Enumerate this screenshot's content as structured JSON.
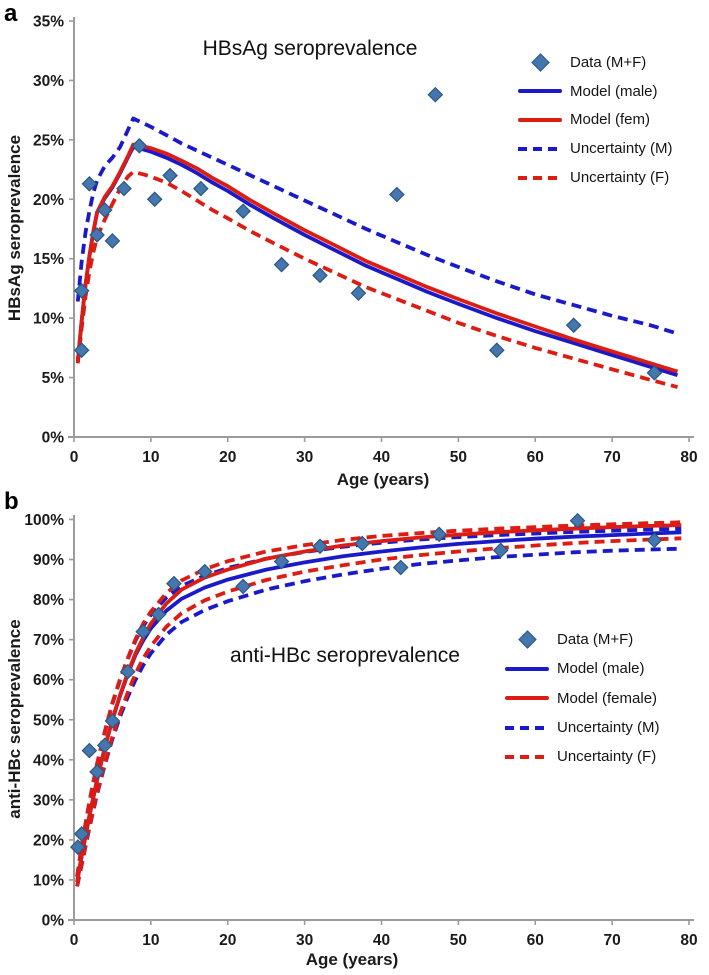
{
  "colors": {
    "male": "#1a1ac9",
    "female": "#dc1d14",
    "data_marker": "#4377ae",
    "data_marker_border": "#2d5783",
    "axis": "#9b9b9b",
    "text": "#1a1a1a"
  },
  "chart_data": [
    {
      "panel_letter": "a",
      "type": "scatter+line",
      "title": "HBsAg seroprevalence",
      "xlabel": "Age (years)",
      "ylabel": "HBsAg seroprevalence",
      "xlim": [
        0,
        80
      ],
      "ylim": [
        0,
        35
      ],
      "grid": false,
      "legend_position": "upper right",
      "x_tick_labels": [
        "0",
        "10",
        "20",
        "30",
        "40",
        "50",
        "60",
        "70",
        "80"
      ],
      "y_tick_labels": [
        "0%",
        "5%",
        "10%",
        "15%",
        "20%",
        "25%",
        "30%",
        "35%"
      ],
      "legend": [
        {
          "marker": "diamond",
          "label": "Data (M+F)"
        },
        {
          "marker": "solid",
          "color_key": "male",
          "label": "Model (male)"
        },
        {
          "marker": "solid",
          "color_key": "female",
          "label": "Model (fem)"
        },
        {
          "marker": "dashed",
          "color_key": "male",
          "label": "Uncertainty (M)"
        },
        {
          "marker": "dashed",
          "color_key": "female",
          "label": "Uncertainty (F)"
        }
      ],
      "data_points": [
        [
          1,
          12.3
        ],
        [
          1,
          7.3
        ],
        [
          2,
          21.3
        ],
        [
          3,
          17.0
        ],
        [
          4,
          19.1
        ],
        [
          5,
          16.5
        ],
        [
          6.5,
          20.9
        ],
        [
          8.5,
          24.5
        ],
        [
          10.5,
          20.0
        ],
        [
          12.5,
          22.0
        ],
        [
          16.5,
          20.9
        ],
        [
          22,
          19.0
        ],
        [
          27,
          14.5
        ],
        [
          32,
          13.6
        ],
        [
          37,
          12.1
        ],
        [
          42,
          20.4
        ],
        [
          47,
          28.8
        ],
        [
          55,
          7.3
        ],
        [
          65,
          9.4
        ],
        [
          75.5,
          5.4
        ]
      ],
      "series": [
        {
          "name": "Uncertainty (M)",
          "style": "dashed",
          "color_key": "male",
          "ages": [
            0.5,
            1,
            1.5,
            2,
            2.5,
            3,
            4,
            5,
            6,
            7,
            7.7,
            9,
            10,
            12,
            14,
            16,
            18,
            20,
            23,
            26,
            30,
            34,
            38,
            42,
            46,
            50,
            55,
            60,
            65,
            70,
            75,
            78.5
          ],
          "values": [
            11.4,
            14.8,
            17.2,
            19.0,
            20.5,
            21.6,
            22.8,
            23.5,
            24.4,
            25.8,
            26.8,
            26.4,
            26.1,
            25.4,
            24.7,
            24.1,
            23.5,
            22.9,
            22.0,
            21.1,
            19.9,
            18.7,
            17.5,
            16.4,
            15.3,
            14.3,
            13.1,
            12.0,
            11.1,
            10.2,
            9.4,
            8.7
          ]
        },
        {
          "name": "Uncertainty (F)",
          "style": "dashed",
          "color_key": "female",
          "ages": [
            0.5,
            1,
            1.5,
            2,
            2.5,
            3,
            4,
            5,
            6,
            7,
            7.7,
            9,
            10,
            12,
            14,
            16,
            18,
            20,
            23,
            26,
            30,
            34,
            38,
            42,
            46,
            50,
            55,
            60,
            65,
            70,
            75,
            78.5
          ],
          "values": [
            6.2,
            9.2,
            11.8,
            13.9,
            15.5,
            16.8,
            18.3,
            19.6,
            20.9,
            21.9,
            22.3,
            22.1,
            21.9,
            21.4,
            20.7,
            19.9,
            19.1,
            18.4,
            17.3,
            16.3,
            15.0,
            13.8,
            12.6,
            11.6,
            10.6,
            9.6,
            8.5,
            7.5,
            6.6,
            5.7,
            4.8,
            4.2
          ]
        },
        {
          "name": "Model (male)",
          "style": "solid",
          "color_key": "male",
          "ages": [
            0.5,
            1,
            1.5,
            2,
            2.5,
            3,
            4,
            5,
            6,
            7,
            7.7,
            9,
            10,
            12,
            14,
            16,
            18,
            20,
            23,
            26,
            30,
            34,
            38,
            42,
            46,
            50,
            55,
            60,
            65,
            70,
            75,
            78.5
          ],
          "values": [
            6.4,
            9.8,
            12.8,
            15.2,
            17.2,
            18.9,
            20.1,
            21.0,
            22.2,
            23.5,
            24.4,
            24.2,
            24.0,
            23.5,
            22.9,
            22.2,
            21.4,
            20.7,
            19.5,
            18.4,
            17.0,
            15.7,
            14.4,
            13.3,
            12.2,
            11.2,
            10.0,
            8.9,
            7.9,
            6.9,
            5.9,
            5.2
          ]
        },
        {
          "name": "Model (fem)",
          "style": "solid",
          "color_key": "female",
          "ages": [
            0.5,
            1,
            1.5,
            2,
            2.5,
            3,
            4,
            5,
            6,
            7,
            7.7,
            9,
            10,
            12,
            14,
            16,
            18,
            20,
            23,
            26,
            30,
            34,
            38,
            42,
            46,
            50,
            55,
            60,
            65,
            70,
            75,
            78.5
          ],
          "values": [
            6.4,
            9.8,
            12.8,
            15.2,
            17.2,
            18.9,
            20.2,
            21.1,
            22.3,
            23.6,
            24.6,
            24.45,
            24.3,
            23.85,
            23.25,
            22.6,
            21.8,
            21.1,
            19.9,
            18.8,
            17.4,
            16.1,
            14.8,
            13.7,
            12.6,
            11.6,
            10.4,
            9.3,
            8.2,
            7.2,
            6.2,
            5.5
          ]
        }
      ]
    },
    {
      "panel_letter": "b",
      "type": "scatter+line",
      "title": "anti-HBc seroprevalence",
      "xlabel": "Age (years)",
      "ylabel": "anti-HBc seroprevalence",
      "xlim": [
        0,
        80
      ],
      "ylim": [
        0,
        100
      ],
      "grid": false,
      "legend_position": "middle right",
      "x_tick_labels": [
        "0",
        "10",
        "20",
        "30",
        "40",
        "50",
        "60",
        "70",
        "80"
      ],
      "y_tick_labels": [
        "0%",
        "10%",
        "20%",
        "30%",
        "40%",
        "50%",
        "60%",
        "70%",
        "80%",
        "90%",
        "100%"
      ],
      "legend": [
        {
          "marker": "diamond",
          "label": "Data (M+F)"
        },
        {
          "marker": "solid",
          "color_key": "male",
          "label": "Model (male)"
        },
        {
          "marker": "solid",
          "color_key": "female",
          "label": "Model (female)"
        },
        {
          "marker": "dashed",
          "color_key": "male",
          "label": "Uncertainty (M)"
        },
        {
          "marker": "dashed",
          "color_key": "female",
          "label": "Uncertainty (F)"
        }
      ],
      "data_points": [
        [
          0.5,
          18.2
        ],
        [
          1,
          21.5
        ],
        [
          2,
          42.3
        ],
        [
          3,
          37.0
        ],
        [
          4,
          43.6
        ],
        [
          5,
          49.7
        ],
        [
          7,
          62.0
        ],
        [
          9,
          72.0
        ],
        [
          11,
          76.3
        ],
        [
          13,
          84.0
        ],
        [
          17,
          87.0
        ],
        [
          22,
          83.3
        ],
        [
          27,
          89.5
        ],
        [
          32,
          93.3
        ],
        [
          37.5,
          94.0
        ],
        [
          42.5,
          88.0
        ],
        [
          47.5,
          96.3
        ],
        [
          55.5,
          92.3
        ],
        [
          65.5,
          99.7
        ],
        [
          75.5,
          94.8
        ]
      ],
      "series": [
        {
          "name": "Uncertainty (M) upper",
          "style": "dashed",
          "color_key": "male",
          "ages": [
            0.4,
            1,
            2,
            3,
            4,
            5,
            6,
            7,
            8,
            9,
            10,
            12,
            14,
            17,
            20,
            25,
            30,
            35,
            40,
            45,
            50,
            55,
            60,
            65,
            70,
            75,
            79
          ],
          "values": [
            10.8,
            18.5,
            29.5,
            39,
            47,
            54,
            60,
            65.2,
            69.8,
            73.4,
            76.2,
            80.5,
            83.4,
            86.0,
            87.9,
            90.2,
            91.9,
            93.2,
            94.2,
            95.0,
            95.6,
            96.1,
            96.5,
            96.9,
            97.2,
            97.5,
            97.7
          ]
        },
        {
          "name": "Uncertainty (F) upper",
          "style": "dashed",
          "color_key": "female",
          "ages": [
            0.4,
            1,
            2,
            3,
            4,
            5,
            6,
            7,
            8,
            9,
            10,
            12,
            14,
            17,
            20,
            25,
            30,
            35,
            40,
            45,
            50,
            55,
            60,
            65,
            70,
            75,
            79
          ],
          "values": [
            10.8,
            18.5,
            29.5,
            39,
            47,
            54.2,
            60.2,
            65.4,
            70.1,
            74.0,
            77.0,
            81.6,
            84.8,
            87.6,
            89.6,
            92.0,
            93.6,
            94.9,
            95.9,
            96.6,
            97.2,
            97.7,
            98.1,
            98.5,
            98.8,
            99.1,
            99.3
          ]
        },
        {
          "name": "Uncertainty (M) lower",
          "style": "dashed",
          "color_key": "male",
          "ages": [
            0.4,
            1,
            2,
            3,
            4,
            5,
            6,
            7,
            8,
            9,
            10,
            12,
            14,
            17,
            20,
            25,
            30,
            35,
            40,
            45,
            50,
            55,
            60,
            65,
            70,
            75,
            79
          ],
          "values": [
            8.4,
            13.8,
            23,
            31.4,
            38.7,
            45.2,
            50.8,
            55.7,
            60.0,
            63.6,
            66.6,
            71.2,
            74.4,
            77.4,
            79.6,
            82.5,
            84.6,
            86.3,
            87.7,
            88.9,
            89.8,
            90.6,
            91.2,
            91.8,
            92.2,
            92.5,
            92.7
          ]
        },
        {
          "name": "Uncertainty (F) lower",
          "style": "dashed",
          "color_key": "female",
          "ages": [
            0.4,
            1,
            2,
            3,
            4,
            5,
            6,
            7,
            8,
            9,
            10,
            12,
            14,
            17,
            20,
            25,
            30,
            35,
            40,
            45,
            50,
            55,
            60,
            65,
            70,
            75,
            79
          ],
          "values": [
            8.4,
            13.9,
            23.2,
            31.7,
            39.1,
            45.8,
            51.6,
            56.8,
            61.5,
            65.3,
            68.4,
            73.2,
            76.6,
            79.8,
            82.0,
            84.9,
            87.0,
            88.6,
            90.0,
            91.1,
            92.0,
            92.8,
            93.5,
            94.1,
            94.6,
            95.0,
            95.3
          ]
        },
        {
          "name": "Model (male)",
          "style": "solid",
          "color_key": "male",
          "ages": [
            0.4,
            1,
            2,
            3,
            4,
            5,
            6,
            7,
            8,
            9,
            10,
            12,
            14,
            17,
            20,
            25,
            30,
            35,
            40,
            45,
            50,
            55,
            60,
            65,
            70,
            75,
            79
          ],
          "values": [
            9.5,
            16,
            26,
            35,
            43,
            50,
            56,
            61.4,
            66.2,
            69.8,
            72.8,
            77.2,
            80.2,
            83.0,
            85.0,
            87.5,
            89.3,
            90.8,
            92.0,
            93.0,
            93.9,
            94.6,
            95.2,
            95.7,
            96.1,
            96.5,
            96.8
          ]
        },
        {
          "name": "Model (female)",
          "style": "solid",
          "color_key": "female",
          "ages": [
            0.4,
            1,
            2,
            3,
            4,
            5,
            6,
            7,
            8,
            9,
            10,
            12,
            14,
            17,
            20,
            25,
            30,
            35,
            40,
            45,
            50,
            55,
            60,
            65,
            70,
            75,
            79
          ],
          "values": [
            9.5,
            16,
            26,
            35,
            43,
            50.2,
            56.2,
            61.7,
            66.6,
            70.5,
            74.0,
            79.0,
            82.5,
            85.5,
            87.5,
            90.2,
            92.0,
            93.5,
            94.6,
            95.5,
            96.2,
            96.8,
            97.3,
            97.7,
            98.1,
            98.4,
            98.6
          ]
        }
      ]
    }
  ]
}
